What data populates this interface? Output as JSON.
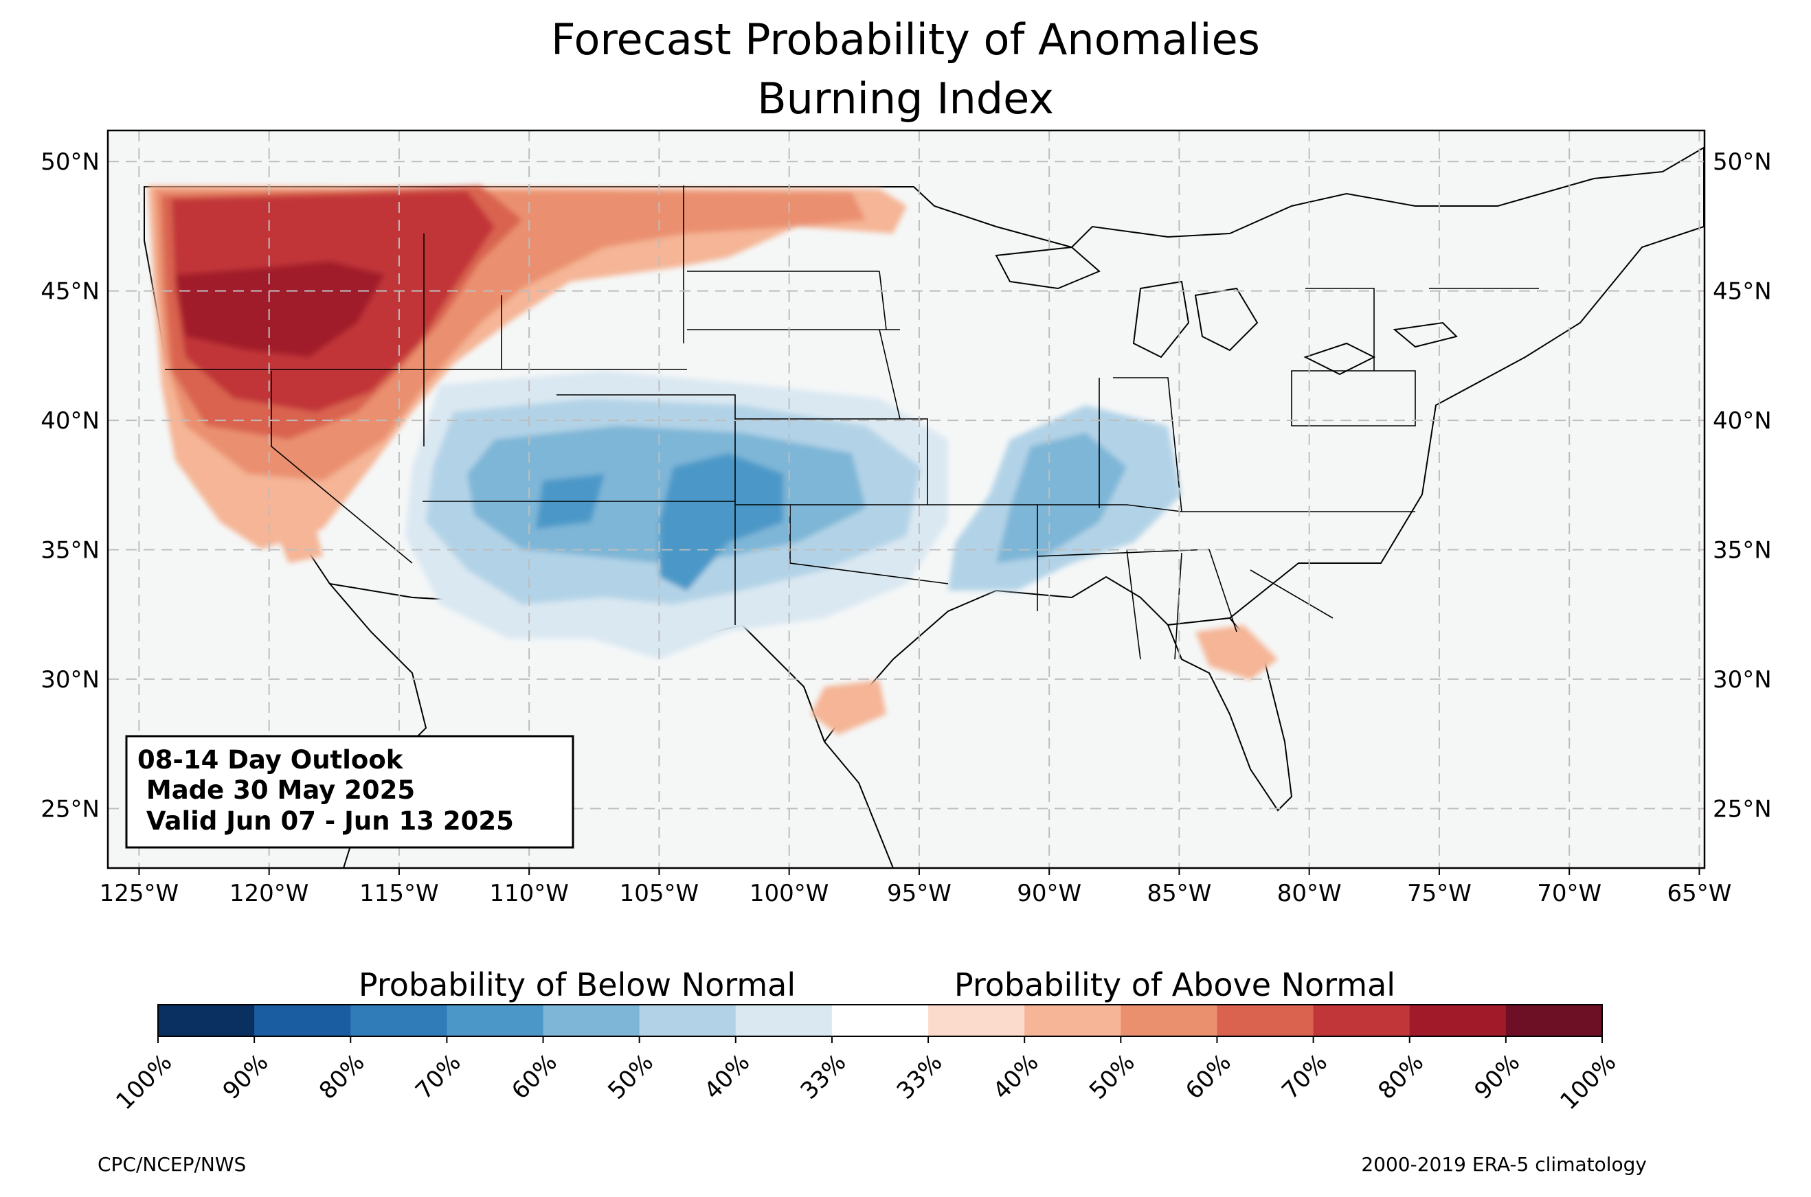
{
  "title": {
    "line1": "Forecast Probability of Anomalies",
    "line2": "Burning Index"
  },
  "map": {
    "lat_labels": [
      "50°N",
      "45°N",
      "40°N",
      "35°N",
      "30°N",
      "25°N"
    ],
    "lat_values": [
      50,
      45,
      40,
      35,
      30,
      25
    ],
    "lon_labels": [
      "125°W",
      "120°W",
      "115°W",
      "110°W",
      "105°W",
      "100°W",
      "95°W",
      "90°W",
      "85°W",
      "80°W",
      "75°W",
      "70°W",
      "65°W"
    ],
    "lon_values": [
      -125,
      -120,
      -115,
      -110,
      -105,
      -100,
      -95,
      -90,
      -85,
      -80,
      -75,
      -70,
      -65
    ],
    "extent": {
      "lon_min": -126.2,
      "lon_max": -64.8,
      "lat_min": 22.7,
      "lat_max": 51.2
    },
    "ocean_color": "#f5f7f7",
    "regions": [
      {
        "name": "Northwest above normal core",
        "category": "above",
        "level": "70-80%",
        "color": "#a11a29"
      },
      {
        "name": "Northwest above normal",
        "category": "above",
        "level": "60-70%",
        "color": "#c9303a"
      },
      {
        "name": "Northern tier above normal",
        "category": "above",
        "level": "50-60%",
        "color": "#e17860"
      },
      {
        "name": "Northern plains above normal",
        "category": "above",
        "level": "40-50%",
        "color": "#f1a98c"
      },
      {
        "name": "Four Corners below normal",
        "category": "below",
        "level": "50-60%",
        "color": "#4b98c8"
      },
      {
        "name": "Southern plains below normal",
        "category": "below",
        "level": "40-50%",
        "color": "#9fc9e2"
      },
      {
        "name": "Mid-South below normal",
        "category": "below",
        "level": "40-50%",
        "color": "#9fc9e2"
      },
      {
        "name": "Southeast above normal",
        "category": "above",
        "level": "40-50%",
        "color": "#f1a98c"
      },
      {
        "name": "South Texas above normal",
        "category": "above",
        "level": "40-50%",
        "color": "#f1a98c"
      }
    ]
  },
  "outlook": {
    "line1": "08-14 Day Outlook",
    "line2": " Made 30 May 2025",
    "line3": " Valid Jun 07 - Jun 13 2025"
  },
  "colorbar": {
    "below_label": "Probability of Below Normal",
    "above_label": "Probability of Above Normal",
    "tick_labels": [
      "100%",
      "90%",
      "80%",
      "70%",
      "60%",
      "50%",
      "40%",
      "33%",
      "33%",
      "40%",
      "50%",
      "60%",
      "70%",
      "80%",
      "90%",
      "100%"
    ],
    "colors": [
      "#0a2f61",
      "#1a5ea1",
      "#2f7cb9",
      "#4b98c8",
      "#7eb6d7",
      "#b2d3e7",
      "#dae8f2",
      "#ffffff",
      "#fbdccc",
      "#f5b596",
      "#ea906f",
      "#d9634f",
      "#c13639",
      "#a11a29",
      "#6d0f25"
    ]
  },
  "footer": {
    "left": "CPC/NCEP/NWS",
    "right": "2000-2019 ERA-5 climatology"
  }
}
